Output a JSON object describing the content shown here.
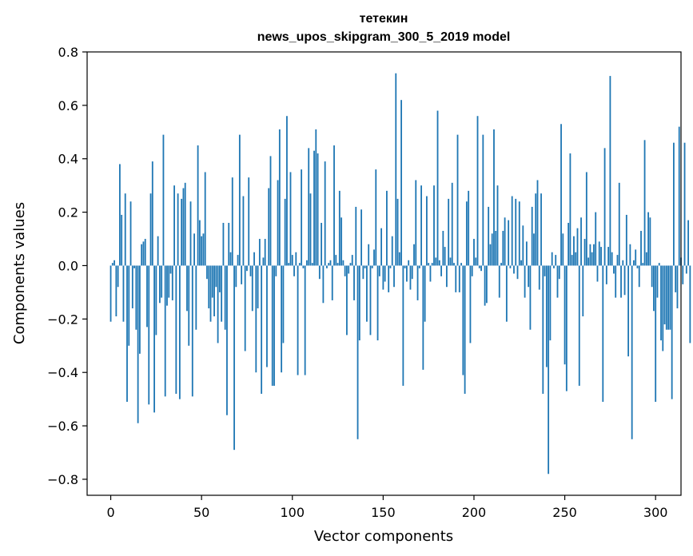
{
  "chart_data": {
    "type": "bar",
    "title_lines": [
      "тетекин",
      "news_upos_skipgram_300_5_2019 model"
    ],
    "xlabel": "Vector components",
    "ylabel": "Components values",
    "xlim": [
      -13,
      314
    ],
    "ylim": [
      -0.86,
      0.8
    ],
    "xticks": [
      0,
      50,
      100,
      150,
      200,
      250,
      300
    ],
    "yticks": [
      -0.8,
      -0.6,
      -0.4,
      -0.2,
      0.0,
      0.2,
      0.4,
      0.6,
      0.8
    ],
    "ytick_labels": [
      "−0.8",
      "−0.6",
      "−0.4",
      "−0.2",
      "0.0",
      "0.2",
      "0.4",
      "0.6",
      "0.8"
    ],
    "grid": false,
    "bar_color": "#1f77b4",
    "values": [
      -0.21,
      0.01,
      0.02,
      -0.19,
      -0.08,
      0.38,
      0.19,
      -0.21,
      0.27,
      -0.51,
      -0.3,
      0.24,
      -0.16,
      -0.01,
      -0.24,
      -0.59,
      -0.33,
      0.08,
      0.09,
      0.1,
      -0.23,
      -0.52,
      0.27,
      0.39,
      -0.55,
      -0.26,
      0.11,
      -0.14,
      -0.12,
      0.49,
      -0.49,
      -0.15,
      -0.12,
      -0.03,
      -0.13,
      0.3,
      -0.48,
      0.27,
      -0.5,
      0.25,
      0.29,
      0.31,
      -0.17,
      -0.3,
      0.24,
      -0.49,
      0.12,
      -0.24,
      0.45,
      0.17,
      0.11,
      0.12,
      0.35,
      -0.05,
      -0.16,
      -0.21,
      -0.12,
      -0.19,
      -0.08,
      -0.29,
      -0.1,
      -0.21,
      0.16,
      -0.24,
      -0.56,
      0.16,
      0.05,
      0.33,
      -0.69,
      -0.08,
      0.04,
      0.49,
      -0.07,
      0.26,
      -0.32,
      -0.02,
      0.33,
      -0.04,
      -0.17,
      0.05,
      -0.4,
      -0.16,
      0.1,
      -0.48,
      0.03,
      0.1,
      -0.38,
      0.29,
      0.41,
      -0.45,
      -0.45,
      -0.04,
      0.32,
      0.51,
      -0.4,
      -0.29,
      0.25,
      0.56,
      0.01,
      0.35,
      0.04,
      -0.04,
      0.05,
      -0.41,
      0.01,
      0.36,
      -0.01,
      -0.41,
      0.02,
      0.44,
      0.27,
      0.01,
      0.43,
      0.51,
      0.42,
      -0.05,
      0.16,
      -0.14,
      0.39,
      -0.01,
      0.01,
      0.02,
      -0.13,
      0.45,
      0.04,
      0.01,
      0.28,
      0.18,
      0.02,
      -0.04,
      -0.26,
      -0.03,
      0.01,
      0.04,
      -0.13,
      0.22,
      -0.65,
      -0.28,
      0.21,
      -0.05,
      -0.01,
      -0.21,
      0.08,
      -0.26,
      -0.01,
      0.06,
      0.36,
      -0.28,
      -0.04,
      0.14,
      -0.09,
      -0.06,
      0.28,
      -0.1,
      -0.01,
      0.11,
      -0.08,
      0.72,
      0.25,
      0.05,
      0.62,
      -0.45,
      -0.01,
      -0.06,
      0.02,
      -0.09,
      -0.05,
      0.08,
      0.32,
      -0.13,
      -0.01,
      0.3,
      -0.39,
      -0.21,
      0.26,
      0.01,
      -0.06,
      0.01,
      0.3,
      0.03,
      0.58,
      0.02,
      -0.04,
      0.13,
      0.07,
      -0.08,
      0.25,
      0.03,
      0.31,
      0.01,
      -0.1,
      0.49,
      -0.1,
      0.01,
      -0.41,
      -0.48,
      0.24,
      0.28,
      -0.29,
      -0.04,
      0.1,
      0.03,
      0.56,
      -0.01,
      -0.02,
      0.49,
      -0.15,
      -0.14,
      0.22,
      0.08,
      0.12,
      0.51,
      0.13,
      0.3,
      -0.12,
      0.01,
      0.13,
      0.18,
      -0.21,
      0.17,
      -0.01,
      0.26,
      -0.03,
      0.25,
      -0.05,
      0.24,
      0.02,
      0.15,
      -0.12,
      0.09,
      -0.08,
      -0.24,
      0.22,
      0.12,
      0.27,
      0.32,
      -0.09,
      0.27,
      -0.48,
      -0.04,
      -0.38,
      -0.78,
      -0.28,
      0.05,
      -0.01,
      0.04,
      -0.12,
      -0.05,
      0.53,
      0.12,
      -0.37,
      -0.47,
      0.16,
      0.42,
      0.04,
      0.11,
      0.05,
      0.14,
      -0.45,
      0.18,
      -0.19,
      0.1,
      0.35,
      0.03,
      0.08,
      0.05,
      0.08,
      0.2,
      -0.06,
      0.09,
      0.07,
      -0.51,
      0.44,
      -0.07,
      0.07,
      0.71,
      0.05,
      -0.03,
      -0.12,
      0.04,
      0.31,
      -0.12,
      0.02,
      -0.11,
      0.19,
      -0.34,
      0.08,
      -0.65,
      0.02,
      0.06,
      -0.01,
      -0.08,
      0.13,
      0.01,
      0.47,
      0.05,
      0.2,
      0.18,
      -0.08,
      -0.17,
      -0.51,
      -0.12,
      0.01,
      -0.28,
      -0.32,
      -0.22,
      -0.24,
      -0.24,
      -0.24,
      -0.5,
      0.46,
      -0.1,
      -0.16,
      0.52,
      0.03,
      -0.07,
      0.46,
      -0.03,
      0.17,
      -0.29
    ]
  }
}
